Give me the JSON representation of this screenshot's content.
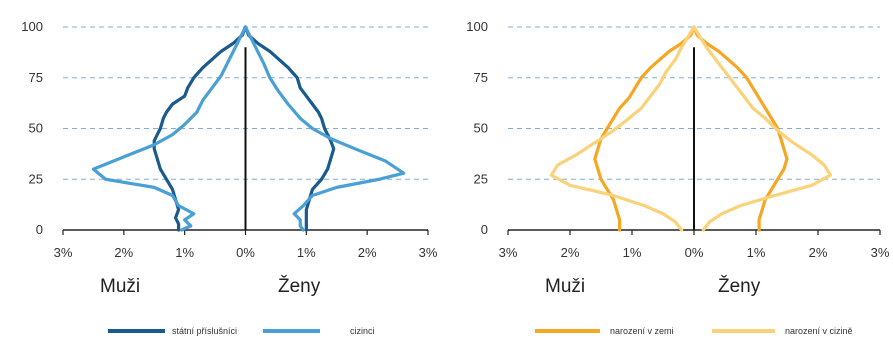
{
  "chart_data": [
    {
      "type": "line",
      "subtype": "population-pyramid",
      "title": "",
      "xlabel_left": "Muži",
      "xlabel_right": "Ženy",
      "xlim": [
        -3,
        3
      ],
      "ylim": [
        0,
        100
      ],
      "x_tick_labels": [
        "3%",
        "2%",
        "1%",
        "0%",
        "1%",
        "2%",
        "3%"
      ],
      "x_tick_values": [
        -3,
        -2,
        -1,
        0,
        1,
        2,
        3
      ],
      "y_tick_labels": [
        "0",
        "25",
        "50",
        "75",
        "100"
      ],
      "y_tick_values": [
        0,
        25,
        50,
        75,
        100
      ],
      "grid": "horizontal-dashed",
      "legend_position": "bottom",
      "series": [
        {
          "name": "státní příslušníci",
          "color": "#1a5a8c",
          "male": [
            [
              1.1,
              0
            ],
            [
              1.1,
              3
            ],
            [
              1.15,
              6
            ],
            [
              1.1,
              10
            ],
            [
              1.15,
              15
            ],
            [
              1.2,
              20
            ],
            [
              1.3,
              25
            ],
            [
              1.4,
              30
            ],
            [
              1.45,
              35
            ],
            [
              1.5,
              40
            ],
            [
              1.5,
              44
            ],
            [
              1.45,
              47
            ],
            [
              1.4,
              50
            ],
            [
              1.35,
              55
            ],
            [
              1.3,
              58
            ],
            [
              1.2,
              62
            ],
            [
              1.0,
              66
            ],
            [
              0.95,
              70
            ],
            [
              0.85,
              75
            ],
            [
              0.7,
              80
            ],
            [
              0.55,
              84
            ],
            [
              0.4,
              88
            ],
            [
              0.2,
              92
            ],
            [
              0.05,
              96
            ],
            [
              0,
              100
            ]
          ],
          "female": [
            [
              1.0,
              0
            ],
            [
              1.0,
              3
            ],
            [
              1.0,
              6
            ],
            [
              1.0,
              10
            ],
            [
              1.05,
              15
            ],
            [
              1.1,
              20
            ],
            [
              1.25,
              25
            ],
            [
              1.35,
              30
            ],
            [
              1.4,
              35
            ],
            [
              1.45,
              40
            ],
            [
              1.4,
              44
            ],
            [
              1.35,
              47
            ],
            [
              1.3,
              50
            ],
            [
              1.25,
              55
            ],
            [
              1.2,
              58
            ],
            [
              1.1,
              62
            ],
            [
              1.0,
              66
            ],
            [
              0.9,
              70
            ],
            [
              0.85,
              75
            ],
            [
              0.7,
              80
            ],
            [
              0.55,
              84
            ],
            [
              0.4,
              88
            ],
            [
              0.2,
              92
            ],
            [
              0.05,
              96
            ],
            [
              0,
              100
            ]
          ]
        },
        {
          "name": "cizinci",
          "color": "#4a9fd4",
          "male": [
            [
              1.05,
              0
            ],
            [
              0.9,
              2
            ],
            [
              1.0,
              5
            ],
            [
              0.85,
              8
            ],
            [
              1.1,
              12
            ],
            [
              1.2,
              17
            ],
            [
              1.5,
              21
            ],
            [
              2.3,
              25
            ],
            [
              2.5,
              30
            ],
            [
              2.0,
              36
            ],
            [
              1.5,
              42
            ],
            [
              1.2,
              47
            ],
            [
              1.0,
              52
            ],
            [
              0.8,
              58
            ],
            [
              0.7,
              64
            ],
            [
              0.55,
              70
            ],
            [
              0.4,
              76
            ],
            [
              0.3,
              82
            ],
            [
              0.2,
              88
            ],
            [
              0.1,
              94
            ],
            [
              0,
              100
            ]
          ],
          "female": [
            [
              0.95,
              0
            ],
            [
              0.9,
              2
            ],
            [
              0.9,
              5
            ],
            [
              0.8,
              8
            ],
            [
              0.95,
              12
            ],
            [
              1.1,
              17
            ],
            [
              1.5,
              21
            ],
            [
              2.2,
              25
            ],
            [
              2.6,
              28
            ],
            [
              2.3,
              34
            ],
            [
              1.8,
              40
            ],
            [
              1.4,
              45
            ],
            [
              1.1,
              50
            ],
            [
              0.9,
              55
            ],
            [
              0.7,
              62
            ],
            [
              0.55,
              68
            ],
            [
              0.4,
              75
            ],
            [
              0.3,
              82
            ],
            [
              0.2,
              88
            ],
            [
              0.1,
              94
            ],
            [
              0,
              100
            ]
          ]
        }
      ]
    },
    {
      "type": "line",
      "subtype": "population-pyramid",
      "title": "",
      "xlabel_left": "Muži",
      "xlabel_right": "Ženy",
      "xlim": [
        -3,
        3
      ],
      "ylim": [
        0,
        100
      ],
      "x_tick_labels": [
        "3%",
        "2%",
        "1%",
        "0%",
        "1%",
        "2%",
        "3%"
      ],
      "x_tick_values": [
        -3,
        -2,
        -1,
        0,
        1,
        2,
        3
      ],
      "y_tick_labels": [
        "0",
        "25",
        "50",
        "75",
        "100"
      ],
      "y_tick_values": [
        0,
        25,
        50,
        75,
        100
      ],
      "grid": "horizontal-dashed",
      "legend_position": "bottom",
      "series": [
        {
          "name": "narození v zemi",
          "color": "#f5a623",
          "male": [
            [
              1.2,
              0
            ],
            [
              1.2,
              5
            ],
            [
              1.25,
              10
            ],
            [
              1.3,
              15
            ],
            [
              1.4,
              20
            ],
            [
              1.5,
              25
            ],
            [
              1.55,
              30
            ],
            [
              1.6,
              35
            ],
            [
              1.55,
              40
            ],
            [
              1.5,
              45
            ],
            [
              1.4,
              50
            ],
            [
              1.3,
              55
            ],
            [
              1.2,
              60
            ],
            [
              1.05,
              65
            ],
            [
              0.95,
              70
            ],
            [
              0.85,
              75
            ],
            [
              0.7,
              80
            ],
            [
              0.55,
              84
            ],
            [
              0.4,
              88
            ],
            [
              0.2,
              92
            ],
            [
              0.05,
              96
            ],
            [
              0,
              100
            ]
          ],
          "female": [
            [
              1.05,
              0
            ],
            [
              1.05,
              5
            ],
            [
              1.1,
              10
            ],
            [
              1.15,
              15
            ],
            [
              1.25,
              20
            ],
            [
              1.35,
              25
            ],
            [
              1.45,
              30
            ],
            [
              1.5,
              35
            ],
            [
              1.45,
              40
            ],
            [
              1.4,
              45
            ],
            [
              1.35,
              50
            ],
            [
              1.25,
              55
            ],
            [
              1.15,
              60
            ],
            [
              1.05,
              65
            ],
            [
              0.95,
              70
            ],
            [
              0.85,
              75
            ],
            [
              0.7,
              80
            ],
            [
              0.55,
              84
            ],
            [
              0.4,
              88
            ],
            [
              0.2,
              92
            ],
            [
              0.05,
              96
            ],
            [
              0,
              100
            ]
          ]
        },
        {
          "name": "narození v cizině",
          "color": "#fad27a",
          "male": [
            [
              0.2,
              0
            ],
            [
              0.3,
              4
            ],
            [
              0.5,
              8
            ],
            [
              0.8,
              12
            ],
            [
              1.3,
              17
            ],
            [
              2.0,
              22
            ],
            [
              2.3,
              27
            ],
            [
              2.2,
              32
            ],
            [
              1.9,
              37
            ],
            [
              1.6,
              43
            ],
            [
              1.3,
              49
            ],
            [
              1.05,
              55
            ],
            [
              0.85,
              60
            ],
            [
              0.7,
              66
            ],
            [
              0.55,
              72
            ],
            [
              0.45,
              78
            ],
            [
              0.3,
              84
            ],
            [
              0.2,
              90
            ],
            [
              0.1,
              95
            ],
            [
              0,
              100
            ]
          ],
          "female": [
            [
              0.15,
              0
            ],
            [
              0.25,
              4
            ],
            [
              0.45,
              8
            ],
            [
              0.75,
              12
            ],
            [
              1.3,
              17
            ],
            [
              1.9,
              22
            ],
            [
              2.2,
              27
            ],
            [
              2.1,
              32
            ],
            [
              1.9,
              37
            ],
            [
              1.6,
              43
            ],
            [
              1.35,
              49
            ],
            [
              1.15,
              55
            ],
            [
              0.95,
              60
            ],
            [
              0.8,
              66
            ],
            [
              0.65,
              72
            ],
            [
              0.5,
              78
            ],
            [
              0.35,
              84
            ],
            [
              0.2,
              90
            ],
            [
              0.1,
              95
            ],
            [
              0,
              100
            ]
          ]
        }
      ]
    }
  ]
}
